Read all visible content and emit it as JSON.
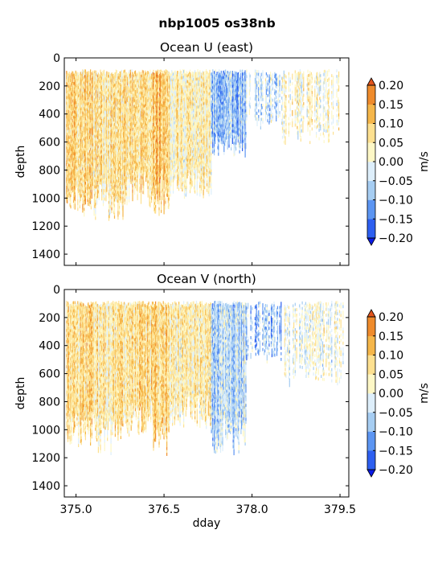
{
  "figure": {
    "suptitle": "nbp1005 os38nb"
  },
  "chart_data": [
    {
      "type": "heatmap",
      "title": "Ocean U (east)",
      "xlabel": "dday",
      "ylabel": "depth",
      "xlim": [
        374.8,
        379.65
      ],
      "ylim": [
        1480,
        0
      ],
      "x_ticks": [
        "375.0",
        "376.5",
        "378.0",
        "379.5"
      ],
      "y_ticks": [
        "0",
        "200",
        "400",
        "600",
        "800",
        "1000",
        "1200",
        "1400"
      ],
      "colorbar": {
        "label": "m/s",
        "levels": [
          -0.2,
          -0.15,
          -0.1,
          -0.05,
          0.0,
          0.05,
          0.1,
          0.15,
          0.2
        ],
        "tick_labels": [
          "−0.20",
          "−0.15",
          "−0.10",
          "−0.05",
          "0.00",
          "0.05",
          "0.10",
          "0.15",
          "0.20"
        ],
        "colors": [
          "#0a1ae6",
          "#2d5ff0",
          "#5c95f2",
          "#a6cdf2",
          "#ddeefa",
          "#fdf7c6",
          "#fde090",
          "#f5b64a",
          "#ef8b2c",
          "#e2541c"
        ],
        "extend": "both"
      },
      "profile_bottom_depth_by_segment": [
        {
          "dday": [
            374.83,
            375.3
          ],
          "max_depth": 1120
        },
        {
          "dday": [
            375.3,
            375.8
          ],
          "max_depth": 1150
        },
        {
          "dday": [
            375.8,
            376.3
          ],
          "max_depth": 1060
        },
        {
          "dday": [
            376.3,
            376.6
          ],
          "max_depth": 1120
        },
        {
          "dday": [
            376.6,
            377.3
          ],
          "max_depth": 1000
        },
        {
          "dday": [
            377.3,
            377.9
          ],
          "max_depth": 700
        },
        {
          "dday": [
            377.9,
            378.5
          ],
          "max_depth": 500
        },
        {
          "dday": [
            378.5,
            379.55
          ],
          "max_depth": 600
        }
      ]
    },
    {
      "type": "heatmap",
      "title": "Ocean V (north)",
      "xlabel": "dday",
      "ylabel": "depth",
      "xlim": [
        374.8,
        379.65
      ],
      "ylim": [
        1480,
        0
      ],
      "x_ticks": [
        "375.0",
        "376.5",
        "378.0",
        "379.5"
      ],
      "y_ticks": [
        "0",
        "200",
        "400",
        "600",
        "800",
        "1000",
        "1200",
        "1400"
      ],
      "colorbar": {
        "label": "m/s",
        "levels": [
          -0.2,
          -0.15,
          -0.1,
          -0.05,
          0.0,
          0.05,
          0.1,
          0.15,
          0.2
        ],
        "tick_labels": [
          "−0.20",
          "−0.15",
          "−0.10",
          "−0.05",
          "0.00",
          "0.05",
          "0.10",
          "0.15",
          "0.20"
        ],
        "colors": [
          "#0a1ae6",
          "#2d5ff0",
          "#5c95f2",
          "#a6cdf2",
          "#ddeefa",
          "#fdf7c6",
          "#fde090",
          "#f5b64a",
          "#ef8b2c",
          "#e2541c"
        ],
        "extend": "both"
      },
      "profile_bottom_depth_by_segment": [
        {
          "dday": [
            374.83,
            375.3
          ],
          "max_depth": 1130
        },
        {
          "dday": [
            375.3,
            375.8
          ],
          "max_depth": 1170
        },
        {
          "dday": [
            375.8,
            376.3
          ],
          "max_depth": 1050
        },
        {
          "dday": [
            376.3,
            376.6
          ],
          "max_depth": 1190
        },
        {
          "dday": [
            376.6,
            377.3
          ],
          "max_depth": 980
        },
        {
          "dday": [
            377.3,
            377.9
          ],
          "max_depth": 1180
        },
        {
          "dday": [
            377.9,
            378.5
          ],
          "max_depth": 520
        },
        {
          "dday": [
            378.5,
            379.55
          ],
          "max_depth": 680
        }
      ]
    }
  ]
}
